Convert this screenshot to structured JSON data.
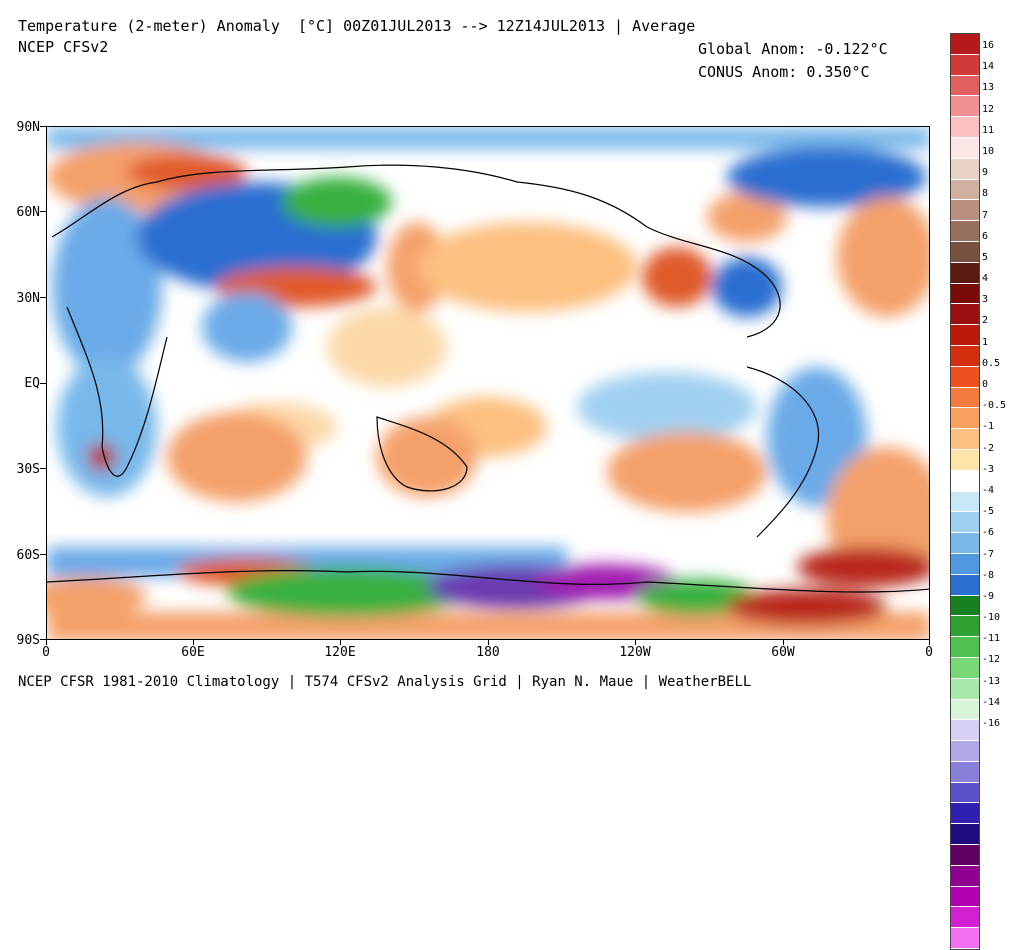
{
  "header": {
    "title": "Temperature (2-meter) Anomaly  [°C] 00Z01JUL2013 --> 12Z14JUL2013 | Average",
    "subtitle": "NCEP CFSv2",
    "global_anom": "Global Anom: -0.122°C",
    "conus_anom": "CONUS Anom: 0.350°C"
  },
  "footer": "NCEP CFSR 1981-2010 Climatology | T574 CFSv2 Analysis Grid | Ryan N. Maue | WeatherBELL",
  "axes": {
    "y_labels": [
      "90N",
      "60N",
      "30N",
      "EQ",
      "30S",
      "60S",
      "90S"
    ],
    "x_labels": [
      "0",
      "60E",
      "120E",
      "180",
      "120W",
      "60W",
      "0"
    ]
  },
  "colorbar": {
    "swatches": [
      "#b51a1a",
      "#d23a3a",
      "#e06060",
      "#f09090",
      "#fbc0c0",
      "#fce6e6",
      "#e8d2c8",
      "#d0b0a0",
      "#b88f80",
      "#987060",
      "#785040",
      "#5a1a10",
      "#7a0a0a",
      "#9a1010",
      "#bb1a0a",
      "#d43010",
      "#ee5020",
      "#f57a40",
      "#f9a060",
      "#fcc080",
      "#fde4a8",
      "#ffffff",
      "#c8e8f8",
      "#a0d0f0",
      "#78b8ea",
      "#5098e0",
      "#2a70d0",
      "#188020",
      "#30a030",
      "#50c050",
      "#78d878",
      "#a8e8a8",
      "#d8f4d8",
      "#d8d0f4",
      "#b0a8e8",
      "#8880d8",
      "#5a50c8",
      "#3020b0",
      "#200a80",
      "#600060",
      "#900090",
      "#b000b0",
      "#d020d0",
      "#f070f0"
    ],
    "labels": [
      "16",
      "14",
      "13",
      "12",
      "11",
      "10",
      "9",
      "8",
      "7",
      "6",
      "5",
      "4",
      "3",
      "2",
      "1",
      "0.5",
      "0",
      "-0.5",
      "-1",
      "-2",
      "-3",
      "-4",
      "-5",
      "-6",
      "-7",
      "-8",
      "-9",
      "-10",
      "-11",
      "-12",
      "-13",
      "-14",
      "-16"
    ]
  },
  "colors": {
    "ocean_neutral": "#ffffff",
    "warm_light": "#fcd8a8",
    "warm": "#f4a06a",
    "warm_strong": "#e05a2a",
    "warm_deep": "#b8281a",
    "cool_light": "#c8e8f8",
    "cool": "#6aaae8",
    "cool_strong": "#2a6ed0",
    "green": "#38b040",
    "purple": "#6a3ab0",
    "magenta": "#a01ab0"
  }
}
